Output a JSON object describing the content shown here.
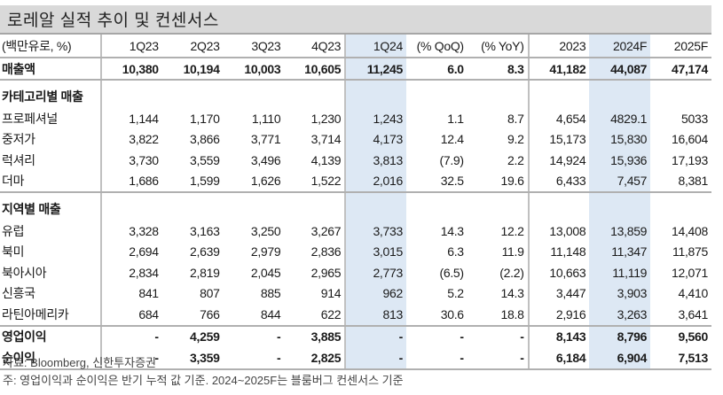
{
  "title": "로레알 실적 추이 및 컨센서스",
  "table": {
    "header": [
      "(백만유로, %)",
      "1Q23",
      "2Q23",
      "3Q23",
      "4Q23",
      "1Q24",
      "(% QoQ)",
      "(% YoY)",
      "2023",
      "2024F",
      "2025F"
    ],
    "revenue": {
      "label": "매출액",
      "values": [
        "10,380",
        "10,194",
        "10,003",
        "10,605",
        "11,245",
        "6.0",
        "8.3",
        "41,182",
        "44,087",
        "47,174"
      ]
    },
    "category_section": {
      "label": "카테고리별 매출",
      "rows": [
        {
          "label": "프로페셔널",
          "values": [
            "1,144",
            "1,170",
            "1,110",
            "1,230",
            "1,243",
            "1.1",
            "8.7",
            "4,654",
            "4829.1",
            "5033"
          ]
        },
        {
          "label": "중저가",
          "values": [
            "3,822",
            "3,866",
            "3,771",
            "3,714",
            "4,173",
            "12.4",
            "9.2",
            "15,173",
            "15,830",
            "16,604"
          ]
        },
        {
          "label": "럭셔리",
          "values": [
            "3,730",
            "3,559",
            "3,496",
            "4,139",
            "3,813",
            "(7.9)",
            "2.2",
            "14,924",
            "15,936",
            "17,193"
          ]
        },
        {
          "label": "더마",
          "values": [
            "1,686",
            "1,599",
            "1,626",
            "1,522",
            "2,016",
            "32.5",
            "19.6",
            "6,433",
            "7,457",
            "8,381"
          ]
        }
      ]
    },
    "region_section": {
      "label": "지역별 매출",
      "rows": [
        {
          "label": "유럽",
          "values": [
            "3,328",
            "3,163",
            "3,250",
            "3,267",
            "3,733",
            "14.3",
            "12.2",
            "13,008",
            "13,859",
            "14,408"
          ]
        },
        {
          "label": "북미",
          "values": [
            "2,694",
            "2,639",
            "2,979",
            "2,836",
            "3,015",
            "6.3",
            "11.9",
            "11,148",
            "11,347",
            "11,875"
          ]
        },
        {
          "label": "북아시아",
          "values": [
            "2,834",
            "2,819",
            "2,045",
            "2,965",
            "2,773",
            "(6.5)",
            "(2.2)",
            "10,663",
            "11,119",
            "12,071"
          ]
        },
        {
          "label": "신흥국",
          "values": [
            "841",
            "807",
            "885",
            "914",
            "962",
            "5.2",
            "14.3",
            "3,447",
            "3,903",
            "4,410"
          ]
        },
        {
          "label": "라틴아메리카",
          "values": [
            "684",
            "766",
            "844",
            "622",
            "813",
            "30.6",
            "18.8",
            "2,916",
            "3,263",
            "3,641"
          ]
        }
      ]
    },
    "profit_rows": [
      {
        "label": "영업이익",
        "values": [
          "-",
          "4,259",
          "-",
          "3,885",
          "-",
          "-",
          "-",
          "8,143",
          "8,796",
          "9,560"
        ]
      },
      {
        "label": "순이익",
        "values": [
          "-",
          "3,359",
          "-",
          "2,825",
          "-",
          "-",
          "-",
          "6,184",
          "6,904",
          "7,513"
        ]
      }
    ]
  },
  "footer": {
    "source": "자료: Bloomberg, 신한투자증권",
    "note": "주: 영업이익과 순이익은 반기 누적 값 기준. 2024~2025F는 블룸버그 컨센서스 기준"
  },
  "colors": {
    "title_bg": "#d9d9d9",
    "highlight_col": "#dde8f4",
    "border": "#b0b0b0"
  }
}
